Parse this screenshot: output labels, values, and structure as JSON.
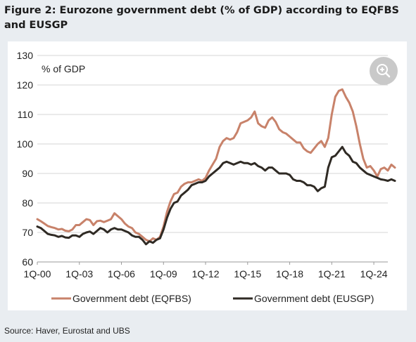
{
  "title": "Figure 2: Eurozone government debt (% of GDP) according to EQFBS and EUSGP",
  "source": "Source: Haver, Eurostat and UBS",
  "zoom_button": {
    "icon": "zoom-in-icon"
  },
  "chart_data": {
    "type": "line",
    "ylabel": "% of GDP",
    "ylim": [
      60,
      130
    ],
    "y_ticks": [
      60,
      70,
      80,
      90,
      100,
      110,
      120,
      130
    ],
    "xlim": [
      2000.0,
      2025.0
    ],
    "x_ticks": [
      {
        "label": "1Q-00",
        "x": 2000.0
      },
      {
        "label": "1Q-03",
        "x": 2003.0
      },
      {
        "label": "1Q-06",
        "x": 2006.0
      },
      {
        "label": "1Q-09",
        "x": 2009.0
      },
      {
        "label": "1Q-12",
        "x": 2012.0
      },
      {
        "label": "1Q-15",
        "x": 2015.0
      },
      {
        "label": "1Q-18",
        "x": 2018.0
      },
      {
        "label": "1Q-21",
        "x": 2021.0
      },
      {
        "label": "1Q-24",
        "x": 2024.0
      }
    ],
    "grid": true,
    "legend_position": "bottom",
    "series": [
      {
        "name": "Government debt (EQFBS)",
        "color": "#c8826a",
        "points": [
          [
            2000.0,
            74.5
          ],
          [
            2000.25,
            73.8
          ],
          [
            2000.5,
            73.0
          ],
          [
            2000.75,
            72.2
          ],
          [
            2001.0,
            71.8
          ],
          [
            2001.25,
            71.5
          ],
          [
            2001.5,
            71.0
          ],
          [
            2001.75,
            71.2
          ],
          [
            2002.0,
            70.6
          ],
          [
            2002.25,
            70.4
          ],
          [
            2002.5,
            71.0
          ],
          [
            2002.75,
            72.5
          ],
          [
            2003.0,
            72.5
          ],
          [
            2003.25,
            73.5
          ],
          [
            2003.5,
            74.5
          ],
          [
            2003.75,
            74.2
          ],
          [
            2004.0,
            72.5
          ],
          [
            2004.25,
            73.8
          ],
          [
            2004.5,
            74.0
          ],
          [
            2004.75,
            73.5
          ],
          [
            2005.0,
            74.0
          ],
          [
            2005.25,
            74.5
          ],
          [
            2005.5,
            76.5
          ],
          [
            2005.75,
            75.5
          ],
          [
            2006.0,
            74.5
          ],
          [
            2006.25,
            73.0
          ],
          [
            2006.5,
            72.0
          ],
          [
            2006.75,
            71.5
          ],
          [
            2007.0,
            70.0
          ],
          [
            2007.25,
            69.5
          ],
          [
            2007.5,
            68.5
          ],
          [
            2007.75,
            67.5
          ],
          [
            2008.0,
            67.0
          ],
          [
            2008.25,
            68.0
          ],
          [
            2008.5,
            67.5
          ],
          [
            2008.75,
            68.5
          ],
          [
            2009.0,
            72.0
          ],
          [
            2009.25,
            77.0
          ],
          [
            2009.5,
            80.5
          ],
          [
            2009.75,
            83.0
          ],
          [
            2010.0,
            83.5
          ],
          [
            2010.25,
            85.5
          ],
          [
            2010.5,
            86.5
          ],
          [
            2010.75,
            87.0
          ],
          [
            2011.0,
            87.0
          ],
          [
            2011.25,
            87.5
          ],
          [
            2011.5,
            88.0
          ],
          [
            2011.75,
            87.5
          ],
          [
            2012.0,
            88.5
          ],
          [
            2012.25,
            91.0
          ],
          [
            2012.5,
            93.0
          ],
          [
            2012.75,
            95.0
          ],
          [
            2013.0,
            99.0
          ],
          [
            2013.25,
            101.0
          ],
          [
            2013.5,
            102.0
          ],
          [
            2013.75,
            101.5
          ],
          [
            2014.0,
            102.0
          ],
          [
            2014.25,
            104.0
          ],
          [
            2014.5,
            107.0
          ],
          [
            2014.75,
            107.5
          ],
          [
            2015.0,
            108.0
          ],
          [
            2015.25,
            109.0
          ],
          [
            2015.5,
            111.0
          ],
          [
            2015.75,
            107.0
          ],
          [
            2016.0,
            106.0
          ],
          [
            2016.25,
            105.5
          ],
          [
            2016.5,
            108.0
          ],
          [
            2016.75,
            109.0
          ],
          [
            2017.0,
            107.5
          ],
          [
            2017.25,
            105.0
          ],
          [
            2017.5,
            104.0
          ],
          [
            2017.75,
            103.5
          ],
          [
            2018.0,
            102.5
          ],
          [
            2018.25,
            101.5
          ],
          [
            2018.5,
            100.5
          ],
          [
            2018.75,
            100.5
          ],
          [
            2019.0,
            98.5
          ],
          [
            2019.25,
            97.5
          ],
          [
            2019.5,
            97.0
          ],
          [
            2019.75,
            98.5
          ],
          [
            2020.0,
            100.0
          ],
          [
            2020.25,
            101.0
          ],
          [
            2020.5,
            99.0
          ],
          [
            2020.75,
            102.0
          ],
          [
            2021.0,
            110.0
          ],
          [
            2021.25,
            116.0
          ],
          [
            2021.5,
            118.0
          ],
          [
            2021.75,
            118.5
          ],
          [
            2022.0,
            116.0
          ],
          [
            2022.25,
            114.0
          ],
          [
            2022.5,
            111.0
          ],
          [
            2022.75,
            106.0
          ],
          [
            2023.0,
            100.0
          ],
          [
            2023.25,
            95.0
          ],
          [
            2023.5,
            92.0
          ],
          [
            2023.75,
            92.5
          ],
          [
            2024.0,
            91.0
          ],
          [
            2024.25,
            89.0
          ],
          [
            2024.5,
            91.5
          ],
          [
            2024.75,
            92.0
          ],
          [
            2025.0,
            91.0
          ],
          [
            2025.25,
            93.0
          ],
          [
            2025.5,
            92.0
          ]
        ]
      },
      {
        "name": "Government debt (EUSGP)",
        "color": "#2f2a24",
        "points": [
          [
            2000.0,
            72.0
          ],
          [
            2000.25,
            71.5
          ],
          [
            2000.5,
            70.5
          ],
          [
            2000.75,
            69.5
          ],
          [
            2001.0,
            69.2
          ],
          [
            2001.25,
            69.0
          ],
          [
            2001.5,
            68.5
          ],
          [
            2001.75,
            68.8
          ],
          [
            2002.0,
            68.3
          ],
          [
            2002.25,
            68.2
          ],
          [
            2002.5,
            69.0
          ],
          [
            2002.75,
            69.0
          ],
          [
            2003.0,
            68.5
          ],
          [
            2003.25,
            69.5
          ],
          [
            2003.5,
            70.0
          ],
          [
            2003.75,
            70.3
          ],
          [
            2004.0,
            69.5
          ],
          [
            2004.25,
            70.5
          ],
          [
            2004.5,
            71.5
          ],
          [
            2004.75,
            71.0
          ],
          [
            2005.0,
            70.0
          ],
          [
            2005.25,
            71.0
          ],
          [
            2005.5,
            71.5
          ],
          [
            2005.75,
            71.0
          ],
          [
            2006.0,
            71.0
          ],
          [
            2006.25,
            70.5
          ],
          [
            2006.5,
            70.0
          ],
          [
            2006.75,
            69.0
          ],
          [
            2007.0,
            68.5
          ],
          [
            2007.25,
            68.5
          ],
          [
            2007.5,
            67.5
          ],
          [
            2007.75,
            66.0
          ],
          [
            2008.0,
            67.0
          ],
          [
            2008.25,
            66.5
          ],
          [
            2008.5,
            67.5
          ],
          [
            2008.75,
            68.0
          ],
          [
            2009.0,
            71.0
          ],
          [
            2009.25,
            75.0
          ],
          [
            2009.5,
            78.0
          ],
          [
            2009.75,
            80.0
          ],
          [
            2010.0,
            80.5
          ],
          [
            2010.25,
            82.5
          ],
          [
            2010.5,
            83.5
          ],
          [
            2010.75,
            84.5
          ],
          [
            2011.0,
            86.0
          ],
          [
            2011.25,
            86.5
          ],
          [
            2011.5,
            87.0
          ],
          [
            2011.75,
            87.0
          ],
          [
            2012.0,
            87.5
          ],
          [
            2012.25,
            89.0
          ],
          [
            2012.5,
            90.0
          ],
          [
            2012.75,
            91.0
          ],
          [
            2013.0,
            92.0
          ],
          [
            2013.25,
            93.5
          ],
          [
            2013.5,
            94.0
          ],
          [
            2013.75,
            93.5
          ],
          [
            2014.0,
            93.0
          ],
          [
            2014.25,
            93.5
          ],
          [
            2014.5,
            94.0
          ],
          [
            2014.75,
            93.5
          ],
          [
            2015.0,
            93.5
          ],
          [
            2015.25,
            93.0
          ],
          [
            2015.5,
            93.5
          ],
          [
            2015.75,
            92.5
          ],
          [
            2016.0,
            92.0
          ],
          [
            2016.25,
            91.0
          ],
          [
            2016.5,
            92.0
          ],
          [
            2016.75,
            92.0
          ],
          [
            2017.0,
            91.0
          ],
          [
            2017.25,
            90.0
          ],
          [
            2017.5,
            90.0
          ],
          [
            2017.75,
            90.0
          ],
          [
            2018.0,
            89.5
          ],
          [
            2018.25,
            88.0
          ],
          [
            2018.5,
            87.5
          ],
          [
            2018.75,
            87.5
          ],
          [
            2019.0,
            87.0
          ],
          [
            2019.25,
            86.0
          ],
          [
            2019.5,
            86.0
          ],
          [
            2019.75,
            85.5
          ],
          [
            2020.0,
            84.0
          ],
          [
            2020.25,
            85.0
          ],
          [
            2020.5,
            85.5
          ],
          [
            2020.75,
            92.0
          ],
          [
            2021.0,
            95.5
          ],
          [
            2021.25,
            96.0
          ],
          [
            2021.5,
            97.5
          ],
          [
            2021.75,
            99.0
          ],
          [
            2022.0,
            97.0
          ],
          [
            2022.25,
            96.0
          ],
          [
            2022.5,
            94.0
          ],
          [
            2022.75,
            93.5
          ],
          [
            2023.0,
            92.0
          ],
          [
            2023.25,
            91.0
          ],
          [
            2023.5,
            90.0
          ],
          [
            2023.75,
            89.5
          ],
          [
            2024.0,
            89.0
          ],
          [
            2024.25,
            88.5
          ],
          [
            2024.5,
            88.0
          ],
          [
            2024.75,
            87.8
          ],
          [
            2025.0,
            87.5
          ],
          [
            2025.25,
            88.0
          ],
          [
            2025.5,
            87.5
          ]
        ]
      }
    ]
  }
}
